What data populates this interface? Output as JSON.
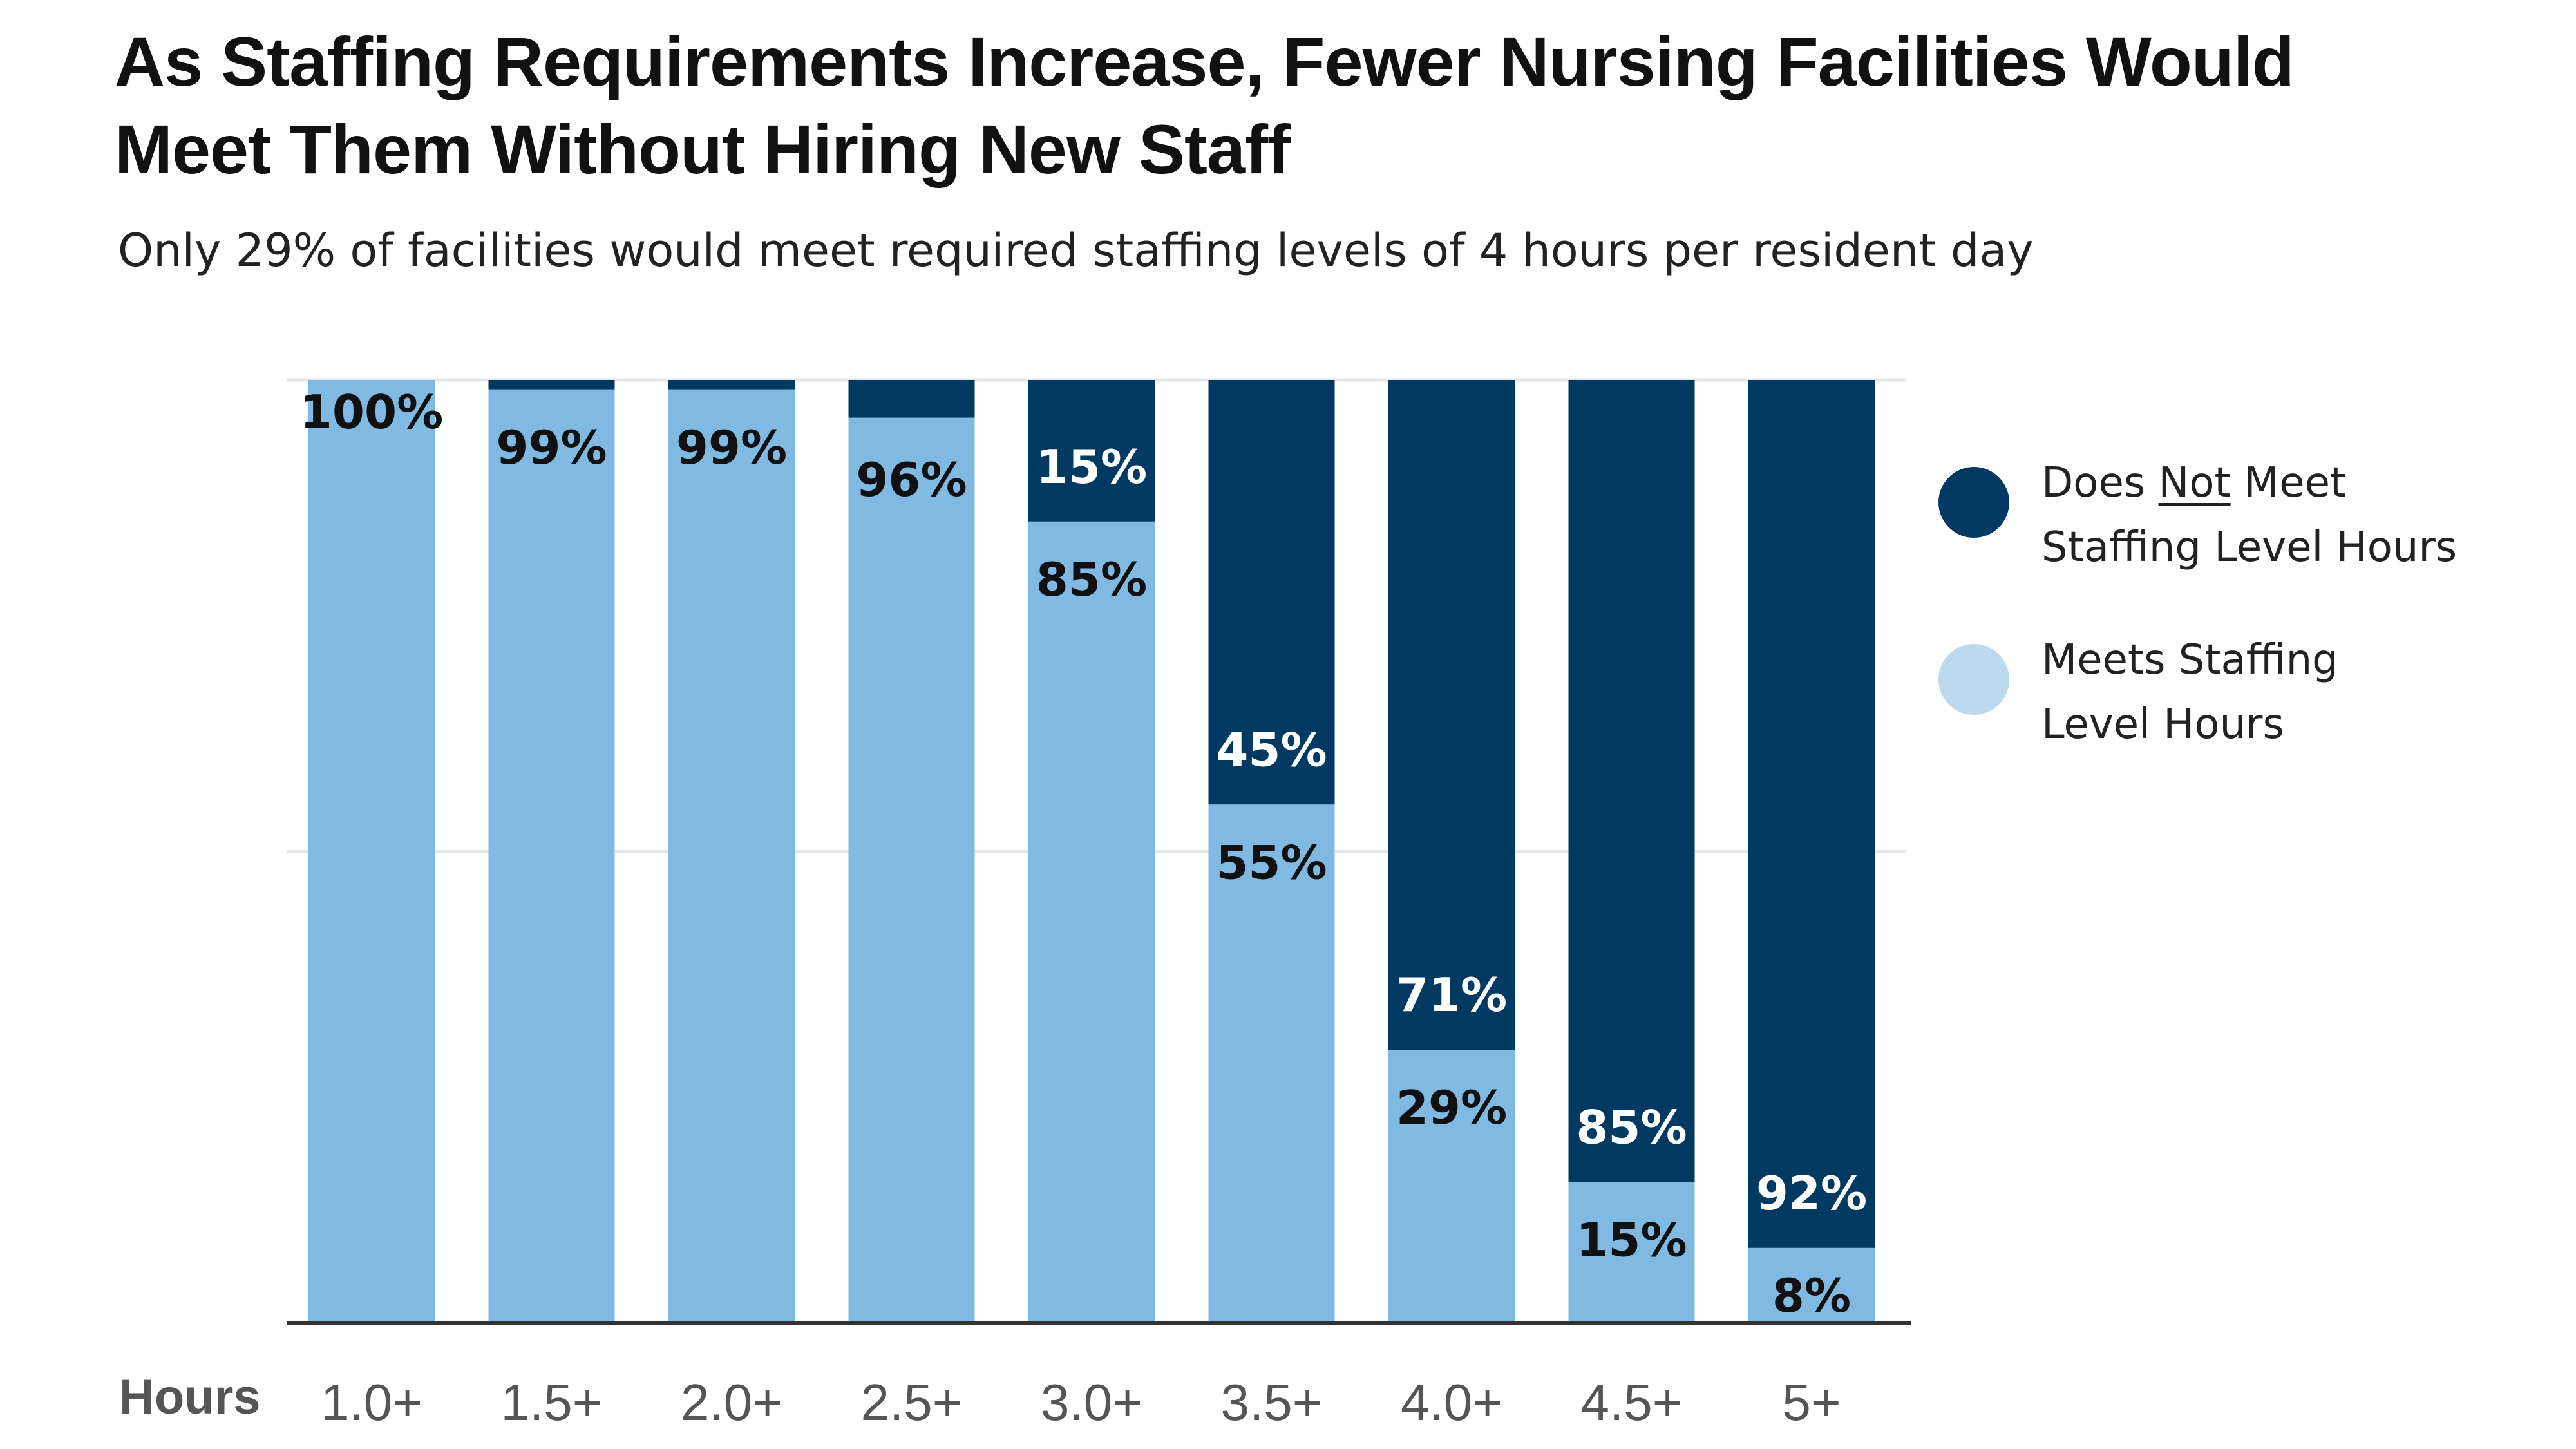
{
  "title": "As Staffing Requirements Increase, Fewer Nursing Facilities Would Meet Them Without Hiring New Staff",
  "subtitle": "Only 29% of facilities would meet required staffing levels of 4 hours per resident day",
  "colors": {
    "does_not_meet": "#003a63",
    "meets_bar": "#80b9e2",
    "meets_legend": "#bcd9ef",
    "grid": "#e6e6e6",
    "axis": "#333333"
  },
  "legend": {
    "does_not_meet": {
      "pre": "Does ",
      "underlined": "Not",
      "post": " Meet",
      "line2": "Staffing Level Hours"
    },
    "meets": {
      "line1": "Meets Staffing",
      "line2": "Level Hours"
    }
  },
  "chart_data": {
    "type": "bar",
    "stacked": true,
    "xlabel": "Hours",
    "categories": [
      "1.0+",
      "1.5+",
      "2.0+",
      "2.5+",
      "3.0+",
      "3.5+",
      "4.0+",
      "4.5+",
      "5+"
    ],
    "series": [
      {
        "name": "Meets Staffing Level Hours",
        "values": [
          100,
          99,
          99,
          96,
          85,
          55,
          29,
          15,
          8
        ]
      },
      {
        "name": "Does Not Meet Staffing Level Hours",
        "values": [
          0,
          1,
          1,
          4,
          15,
          45,
          71,
          85,
          92
        ]
      }
    ],
    "data_labels": {
      "meets": [
        "100%",
        "99%",
        "99%",
        "96%",
        "85%",
        "55%",
        "29%",
        "15%",
        "8%"
      ],
      "does_not_meet": [
        null,
        null,
        null,
        null,
        "15%",
        "45%",
        "71%",
        "85%",
        "92%"
      ]
    },
    "ylim": [
      0,
      100
    ],
    "grid": true,
    "legend_position": "right"
  }
}
